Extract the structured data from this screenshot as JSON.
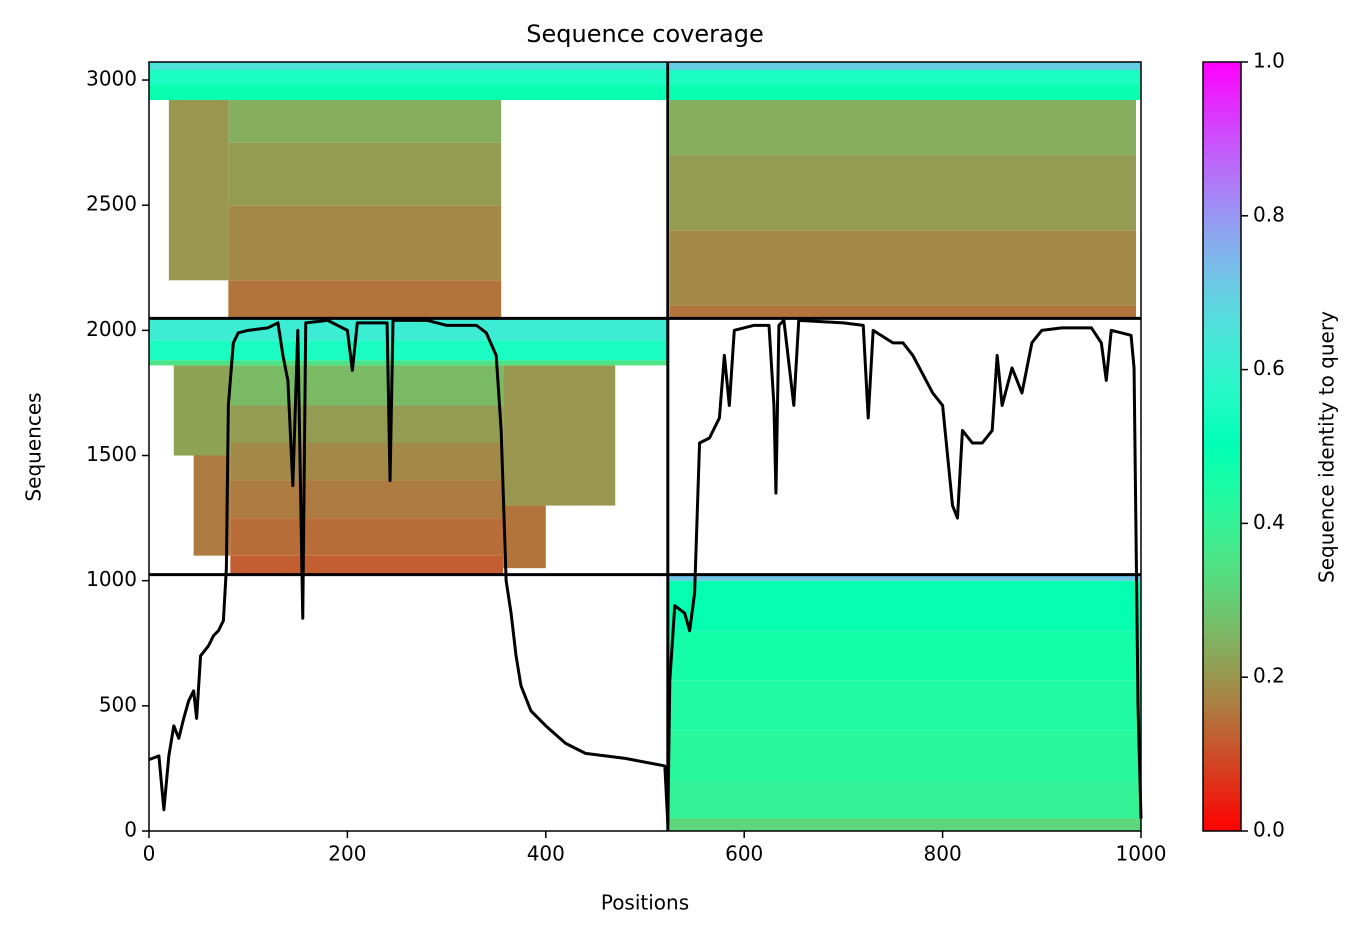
{
  "chart_data": {
    "type": "coverage",
    "title": "Sequence coverage",
    "x_label": "Positions",
    "y_label": "Sequences",
    "colorbar_label": "Sequence identity to query",
    "colormap": "rainbow_r",
    "xlim": [
      0,
      1000
    ],
    "ylim": [
      0,
      3072
    ],
    "xticks": [
      0,
      200,
      400,
      600,
      800,
      1000
    ],
    "yticks": [
      0,
      500,
      1000,
      1500,
      2000,
      2500,
      3000
    ],
    "clim": [
      0,
      1
    ],
    "cticks": [
      {
        "value": 0,
        "label": "0.0"
      },
      {
        "value": 0.2,
        "label": "0.2"
      },
      {
        "value": 0.4,
        "label": "0.4"
      },
      {
        "value": 0.6,
        "label": "0.6"
      },
      {
        "value": 0.8,
        "label": "0.8"
      },
      {
        "value": 1,
        "label": "1.0"
      }
    ],
    "vlines": [
      523
    ],
    "hlines": [
      1024,
      2048
    ],
    "rows": [
      {
        "x": [
          523,
          1000
        ],
        "y": [
          0,
          50
        ],
        "identity": 0.32
      },
      {
        "x": [
          523,
          1000
        ],
        "y": [
          50,
          200
        ],
        "identity": 0.4
      },
      {
        "x": [
          523,
          1000
        ],
        "y": [
          200,
          400
        ],
        "identity": 0.42
      },
      {
        "x": [
          523,
          1000
        ],
        "y": [
          400,
          600
        ],
        "identity": 0.44
      },
      {
        "x": [
          523,
          1000
        ],
        "y": [
          600,
          800
        ],
        "identity": 0.46
      },
      {
        "x": [
          523,
          1000
        ],
        "y": [
          800,
          1000
        ],
        "identity": 0.49
      },
      {
        "x": [
          523,
          1000
        ],
        "y": [
          1000,
          1024
        ],
        "identity": 0.72
      },
      {
        "x": [
          82,
          357
        ],
        "y": [
          1024,
          1100
        ],
        "identity": 0.12
      },
      {
        "x": [
          82,
          357
        ],
        "y": [
          1100,
          1250
        ],
        "identity": 0.14
      },
      {
        "x": [
          82,
          357
        ],
        "y": [
          1250,
          1400
        ],
        "identity": 0.16
      },
      {
        "x": [
          82,
          357
        ],
        "y": [
          1400,
          1550
        ],
        "identity": 0.18
      },
      {
        "x": [
          82,
          357
        ],
        "y": [
          1550,
          1700
        ],
        "identity": 0.21
      },
      {
        "x": [
          82,
          357
        ],
        "y": [
          1700,
          1860
        ],
        "identity": 0.26
      },
      {
        "x": [
          45,
          82
        ],
        "y": [
          1100,
          1500
        ],
        "identity": 0.16
      },
      {
        "x": [
          25,
          82
        ],
        "y": [
          1500,
          1860
        ],
        "identity": 0.22
      },
      {
        "x": [
          357,
          470
        ],
        "y": [
          1300,
          1860
        ],
        "identity": 0.2
      },
      {
        "x": [
          357,
          400
        ],
        "y": [
          1050,
          1300
        ],
        "identity": 0.15
      },
      {
        "x": [
          0,
          523
        ],
        "y": [
          1860,
          1880
        ],
        "identity": 0.35
      },
      {
        "x": [
          0,
          523
        ],
        "y": [
          1880,
          1960
        ],
        "identity": 0.55
      },
      {
        "x": [
          0,
          523
        ],
        "y": [
          1960,
          2048
        ],
        "identity": 0.62
      },
      {
        "x": [
          80,
          355
        ],
        "y": [
          2048,
          2200
        ],
        "identity": 0.15
      },
      {
        "x": [
          80,
          355
        ],
        "y": [
          2200,
          2500
        ],
        "identity": 0.18
      },
      {
        "x": [
          80,
          355
        ],
        "y": [
          2500,
          2750
        ],
        "identity": 0.21
      },
      {
        "x": [
          80,
          355
        ],
        "y": [
          2750,
          2920
        ],
        "identity": 0.24
      },
      {
        "x": [
          20,
          80
        ],
        "y": [
          2200,
          2920
        ],
        "identity": 0.2
      },
      {
        "x": [
          0,
          523
        ],
        "y": [
          2920,
          2980
        ],
        "identity": 0.48
      },
      {
        "x": [
          0,
          523
        ],
        "y": [
          2980,
          3040
        ],
        "identity": 0.55
      },
      {
        "x": [
          0,
          523
        ],
        "y": [
          3040,
          3072
        ],
        "identity": 0.65
      },
      {
        "x": [
          525,
          995
        ],
        "y": [
          2048,
          2100
        ],
        "identity": 0.15
      },
      {
        "x": [
          525,
          995
        ],
        "y": [
          2100,
          2400
        ],
        "identity": 0.18
      },
      {
        "x": [
          525,
          995
        ],
        "y": [
          2400,
          2700
        ],
        "identity": 0.21
      },
      {
        "x": [
          525,
          995
        ],
        "y": [
          2700,
          2920
        ],
        "identity": 0.24
      },
      {
        "x": [
          525,
          1000
        ],
        "y": [
          2920,
          2980
        ],
        "identity": 0.48
      },
      {
        "x": [
          525,
          1000
        ],
        "y": [
          2980,
          3040
        ],
        "identity": 0.55
      },
      {
        "x": [
          525,
          1000
        ],
        "y": [
          3040,
          3072
        ],
        "identity": 0.7
      }
    ],
    "coverage": {
      "color": "#000000",
      "x": [
        0,
        10,
        15,
        20,
        25,
        30,
        35,
        40,
        45,
        48,
        52,
        60,
        65,
        70,
        75,
        78,
        80,
        85,
        90,
        100,
        120,
        130,
        135,
        140,
        145,
        150,
        155,
        158,
        180,
        200,
        205,
        210,
        240,
        243,
        246,
        280,
        300,
        330,
        340,
        350,
        355,
        360,
        365,
        370,
        375,
        385,
        400,
        420,
        440,
        480,
        520,
        523,
        525,
        530,
        540,
        545,
        550,
        555,
        565,
        575,
        580,
        585,
        590,
        610,
        625,
        630,
        632,
        635,
        640,
        650,
        655,
        700,
        720,
        725,
        730,
        750,
        760,
        770,
        790,
        800,
        810,
        815,
        820,
        830,
        840,
        850,
        855,
        860,
        870,
        880,
        890,
        900,
        920,
        950,
        960,
        965,
        970,
        980,
        990,
        993,
        997,
        1000
      ],
      "y": [
        285,
        300,
        85,
        300,
        420,
        370,
        450,
        520,
        560,
        450,
        700,
        740,
        780,
        800,
        840,
        1050,
        1700,
        1950,
        1990,
        2000,
        2010,
        2030,
        1900,
        1800,
        1380,
        2000,
        850,
        2030,
        2040,
        2000,
        1840,
        2030,
        2030,
        1400,
        2040,
        2040,
        2020,
        2020,
        1990,
        1900,
        1600,
        1000,
        870,
        700,
        580,
        480,
        420,
        350,
        310,
        290,
        260,
        30,
        600,
        900,
        870,
        800,
        950,
        1550,
        1570,
        1650,
        1900,
        1700,
        2000,
        2020,
        2020,
        1700,
        1350,
        2020,
        2040,
        1700,
        2040,
        2030,
        2020,
        1650,
        2000,
        1950,
        1950,
        1900,
        1750,
        1700,
        1300,
        1250,
        1600,
        1550,
        1550,
        1600,
        1900,
        1700,
        1850,
        1750,
        1950,
        2000,
        2010,
        2010,
        1950,
        1800,
        2000,
        1990,
        1980,
        1850,
        500,
        50
      ]
    }
  }
}
